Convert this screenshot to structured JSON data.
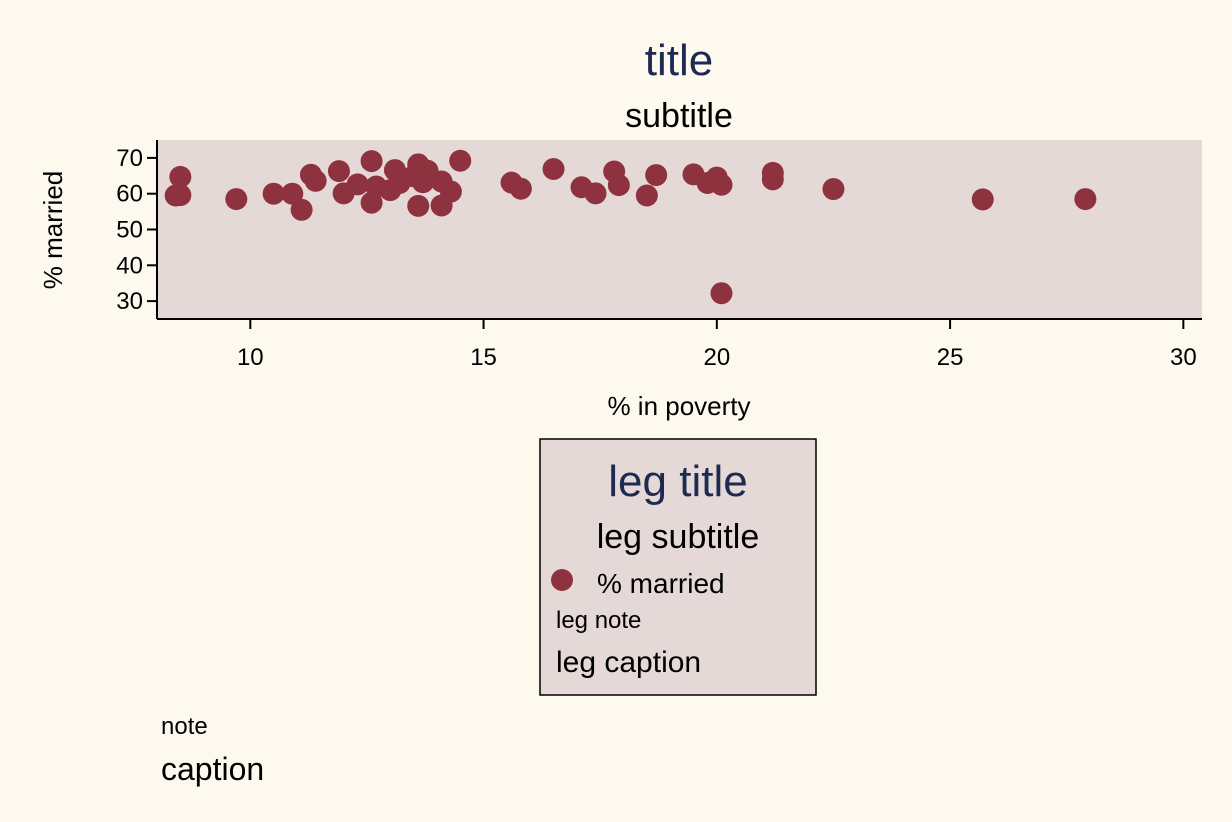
{
  "colors": {
    "page_bg": "#fdf9ee",
    "plot_bg": "#e5d9d7",
    "marker": "#8f323f",
    "title": "#1d2b52",
    "text": "#000000"
  },
  "chart_data": {
    "type": "scatter",
    "title": "title",
    "subtitle": "subtitle",
    "xlabel": "% in poverty",
    "ylabel": "% married",
    "xlim": [
      8,
      30.4
    ],
    "ylim": [
      25,
      75
    ],
    "xticks": [
      "10",
      "15",
      "20",
      "25",
      "30"
    ],
    "yticks": [
      "30",
      "40",
      "50",
      "60",
      "70"
    ],
    "grid": false,
    "series": [
      {
        "name": "% married",
        "marker_color": "#8f323f",
        "points": [
          {
            "x": 8.4,
            "y": 59.5
          },
          {
            "x": 8.5,
            "y": 64.7
          },
          {
            "x": 8.5,
            "y": 59.6
          },
          {
            "x": 9.7,
            "y": 58.5
          },
          {
            "x": 10.5,
            "y": 60.0
          },
          {
            "x": 10.9,
            "y": 60.0
          },
          {
            "x": 11.1,
            "y": 55.5
          },
          {
            "x": 11.3,
            "y": 65.3
          },
          {
            "x": 11.4,
            "y": 63.6
          },
          {
            "x": 11.9,
            "y": 66.3
          },
          {
            "x": 12.0,
            "y": 60.1
          },
          {
            "x": 12.3,
            "y": 62.6
          },
          {
            "x": 12.6,
            "y": 69.1
          },
          {
            "x": 12.6,
            "y": 57.5
          },
          {
            "x": 12.7,
            "y": 62.0
          },
          {
            "x": 13.0,
            "y": 61.0
          },
          {
            "x": 13.1,
            "y": 66.6
          },
          {
            "x": 13.2,
            "y": 63.0
          },
          {
            "x": 13.5,
            "y": 64.9
          },
          {
            "x": 13.6,
            "y": 68.2
          },
          {
            "x": 13.6,
            "y": 56.6
          },
          {
            "x": 13.7,
            "y": 63.2
          },
          {
            "x": 13.8,
            "y": 66.4
          },
          {
            "x": 14.1,
            "y": 56.7
          },
          {
            "x": 14.1,
            "y": 63.4
          },
          {
            "x": 14.3,
            "y": 60.6
          },
          {
            "x": 14.5,
            "y": 69.2
          },
          {
            "x": 15.6,
            "y": 63.1
          },
          {
            "x": 15.8,
            "y": 61.4
          },
          {
            "x": 16.5,
            "y": 66.9
          },
          {
            "x": 17.1,
            "y": 61.8
          },
          {
            "x": 17.4,
            "y": 60.1
          },
          {
            "x": 17.8,
            "y": 66.2
          },
          {
            "x": 17.9,
            "y": 62.4
          },
          {
            "x": 18.5,
            "y": 59.5
          },
          {
            "x": 18.7,
            "y": 65.2
          },
          {
            "x": 19.5,
            "y": 65.4
          },
          {
            "x": 19.8,
            "y": 63.0
          },
          {
            "x": 20.0,
            "y": 64.5
          },
          {
            "x": 20.1,
            "y": 62.5
          },
          {
            "x": 20.1,
            "y": 32.2
          },
          {
            "x": 21.2,
            "y": 65.8
          },
          {
            "x": 21.2,
            "y": 64.0
          },
          {
            "x": 22.5,
            "y": 61.3
          },
          {
            "x": 25.7,
            "y": 58.4
          },
          {
            "x": 27.9,
            "y": 58.5
          }
        ]
      }
    ],
    "legend": {
      "placement": "bottom",
      "title": "leg title",
      "subtitle": "leg subtitle",
      "entries": [
        "% married"
      ],
      "note": "leg note",
      "caption": "leg caption"
    },
    "note": "note",
    "caption": "caption"
  }
}
